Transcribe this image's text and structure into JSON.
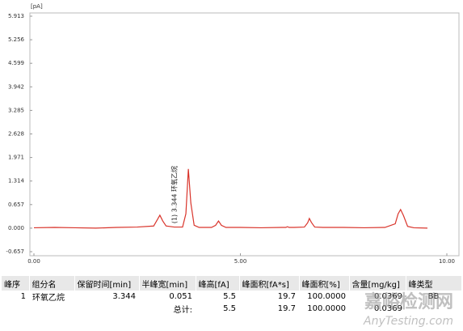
{
  "chart_data": {
    "type": "line",
    "y_axis_label": "[pA]",
    "annotation": "(1) 3.344 环氧乙烷",
    "x": [
      0,
      0.5,
      1.0,
      1.5,
      2.0,
      2.5,
      2.9,
      2.98,
      3.05,
      3.12,
      3.2,
      3.4,
      3.6,
      3.68,
      3.74,
      3.8,
      3.88,
      4.0,
      4.3,
      4.4,
      4.47,
      4.54,
      4.65,
      5.0,
      5.5,
      6.0,
      6.1,
      6.14,
      6.18,
      6.3,
      6.55,
      6.63,
      6.67,
      6.72,
      6.8,
      7.0,
      7.5,
      8.0,
      8.5,
      8.75,
      8.82,
      8.88,
      8.95,
      9.05,
      9.2,
      9.53
    ],
    "values": [
      0.01,
      0.02,
      0.01,
      0.0,
      0.02,
      0.03,
      0.06,
      0.22,
      0.36,
      0.2,
      0.06,
      0.03,
      0.03,
      0.4,
      1.65,
      0.7,
      0.08,
      0.02,
      0.02,
      0.08,
      0.2,
      0.08,
      0.02,
      0.02,
      0.01,
      0.02,
      0.02,
      0.04,
      0.02,
      0.02,
      0.03,
      0.15,
      0.27,
      0.16,
      0.03,
      0.02,
      0.02,
      0.01,
      0.02,
      0.12,
      0.4,
      0.52,
      0.35,
      0.05,
      0.01,
      0.0
    ],
    "color": "#d9342b",
    "xlim": [
      0,
      10
    ],
    "xticks": [
      {
        "value": 0,
        "label": "0.00"
      },
      {
        "value": 5,
        "label": "5.00"
      },
      {
        "value": 10,
        "label": "10.00"
      }
    ],
    "ylim": [
      -0.657,
      5.913
    ],
    "yticks": [
      -0.657,
      {
        "value": 0,
        "label": "0.000"
      },
      0.657,
      1.314,
      1.971,
      2.628,
      3.285,
      3.942,
      4.599,
      5.256,
      5.913
    ]
  },
  "table": {
    "header": [
      "峰序",
      "组分名",
      "保留时间[min]",
      "半峰宽[min]",
      "峰高[fA]",
      "峰面积[fA*s]",
      "峰面积[%]",
      "含量[mg/kg]",
      "峰类型"
    ],
    "rows": [
      [
        "1",
        "环氧乙烷",
        "3.344",
        "0.051",
        "5.5",
        "19.7",
        "100.0000",
        "0.0369",
        "BB"
      ],
      [
        null,
        null,
        null,
        "总计:",
        "5.5",
        "19.7",
        "100.0000",
        "0.0369",
        null
      ]
    ]
  },
  "watermark": {
    "title": "嘉峪检测网",
    "subtitle": "AnyTesting.com"
  }
}
